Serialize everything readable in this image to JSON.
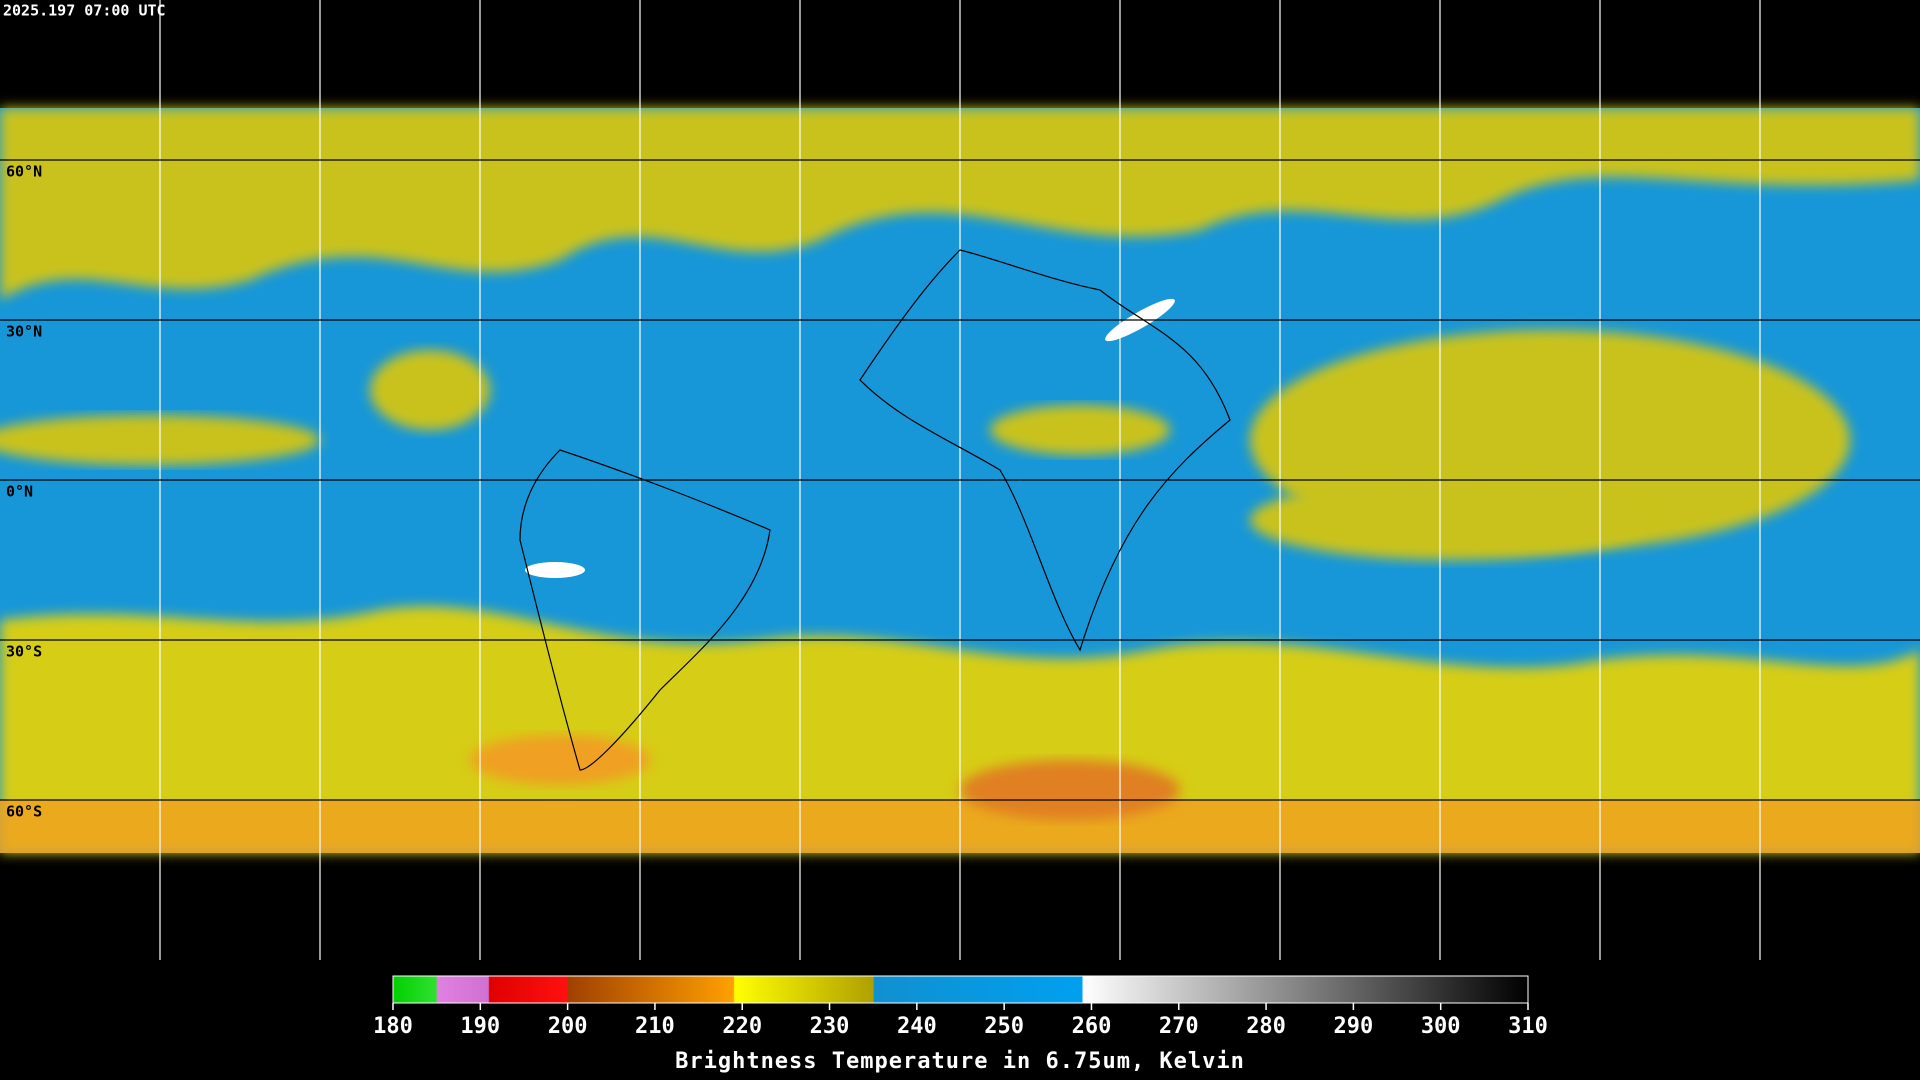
{
  "header": {
    "timestamp": "2025.197 07:00 UTC"
  },
  "map": {
    "latitude_labels": [
      "60°N",
      "30°N",
      "0°N",
      "30°S",
      "60°S"
    ]
  },
  "colorbar": {
    "range": [
      180,
      310
    ],
    "ticks": [
      180,
      190,
      200,
      210,
      220,
      230,
      240,
      250,
      260,
      270,
      280,
      290,
      300,
      310
    ],
    "title": "Brightness Temperature in 6.75um, Kelvin"
  }
}
